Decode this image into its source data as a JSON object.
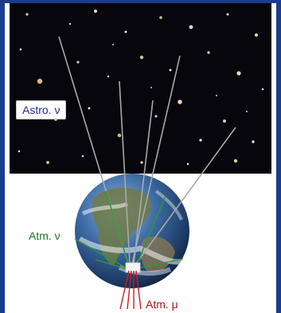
{
  "labels": {
    "astro_nu": "Astro. ν",
    "atm_nu": "Atm. ν",
    "atm_mu": "Atm. μ"
  },
  "colors": {
    "background_border": "#1a3c8f",
    "space": "#07060c",
    "astro_track": "#a9a9a9",
    "astro_text": "#2a2aa0",
    "atm_nu_track": "#2e9a2e",
    "atm_nu_text": "#1f7a1f",
    "atm_mu_track": "#cc1f1f",
    "atm_mu_text": "#a01818"
  }
}
